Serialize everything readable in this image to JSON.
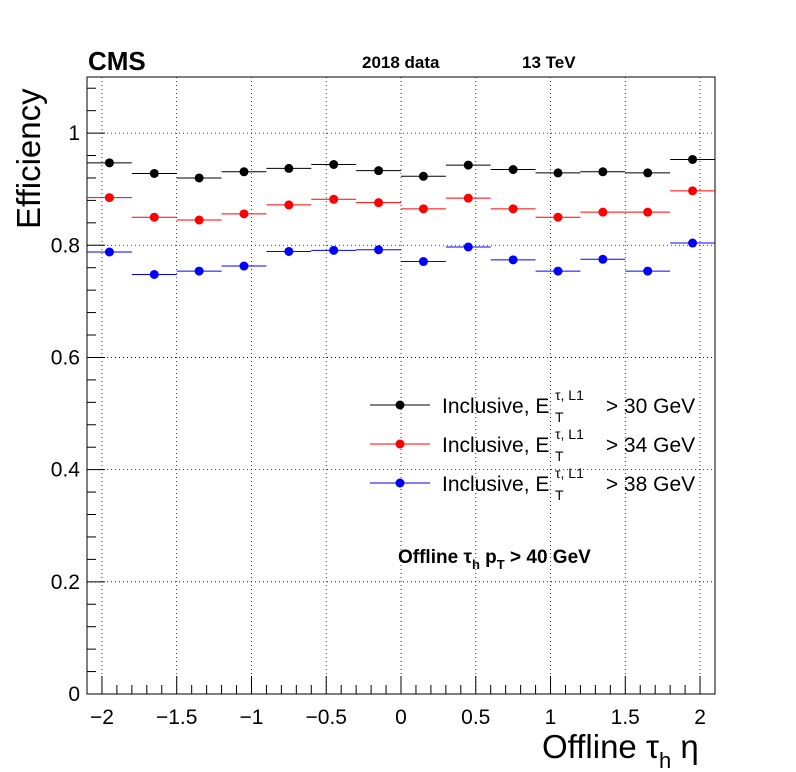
{
  "chart_data": {
    "type": "scatter",
    "experiment": "CMS",
    "dataset": "2018 data",
    "energy": "13 TeV",
    "ylabel": "Efficiency",
    "xlabel": {
      "prefix": "Offline ",
      "tau": "τ",
      "sub": "h",
      "eta": " η"
    },
    "xlim": [
      -2.1,
      2.1
    ],
    "ylim": [
      0,
      1.1
    ],
    "x_ticks": [
      -2,
      -1.5,
      -1,
      -0.5,
      0,
      0.5,
      1,
      1.5,
      2
    ],
    "x_tick_labels": [
      "−2",
      "−1.5",
      "−1",
      "−0.5",
      "0",
      "0.5",
      "1",
      "1.5",
      "2"
    ],
    "y_ticks": [
      0,
      0.2,
      0.4,
      0.6,
      0.8,
      1
    ],
    "y_tick_labels": [
      "0",
      "0.2",
      "0.4",
      "0.6",
      "0.8",
      "1"
    ],
    "grid": true,
    "legend_position": "right",
    "x": [
      -1.95,
      -1.65,
      -1.35,
      -1.05,
      -0.75,
      -0.45,
      -0.15,
      0.15,
      0.45,
      0.75,
      1.05,
      1.35,
      1.65,
      1.95
    ],
    "x_err": [
      0.15,
      0.15,
      0.15,
      0.15,
      0.15,
      0.15,
      0.15,
      0.15,
      0.15,
      0.15,
      0.15,
      0.15,
      0.15,
      0.15
    ],
    "series": [
      {
        "name": "Inclusive, E_T^{τ, L1} > 30 GeV",
        "legend": {
          "prefix": "Inclusive, E",
          "sup": "τ, L1",
          "sub": "T",
          "suffix": " > 30 GeV"
        },
        "color": "#000000",
        "values": [
          0.947,
          0.928,
          0.92,
          0.931,
          0.937,
          0.944,
          0.933,
          0.923,
          0.943,
          0.935,
          0.929,
          0.931,
          0.929,
          0.953
        ]
      },
      {
        "name": "Inclusive, E_T^{τ, L1} > 34 GeV",
        "legend": {
          "prefix": "Inclusive, E",
          "sup": "τ, L1",
          "sub": "T",
          "suffix": " > 34 GeV"
        },
        "color": "#ff0000",
        "values": [
          0.885,
          0.85,
          0.845,
          0.856,
          0.872,
          0.882,
          0.876,
          0.865,
          0.884,
          0.865,
          0.85,
          0.859,
          0.859,
          0.897
        ]
      },
      {
        "name": "Inclusive, E_T^{τ, L1} > 38 GeV",
        "legend": {
          "prefix": "Inclusive, E",
          "sup": "τ, L1",
          "sub": "T",
          "suffix": " > 38 GeV"
        },
        "color": "#0000ff",
        "values": [
          0.788,
          0.748,
          0.754,
          0.763,
          0.789,
          0.791,
          0.792,
          0.771,
          0.797,
          0.774,
          0.754,
          0.775,
          0.754,
          0.804
        ]
      }
    ],
    "annotation": {
      "prefix": "Offline ",
      "tau": "τ",
      "tau_sub": "h",
      "p": " p",
      "p_sub": "T",
      "suffix": " > 40 GeV"
    }
  }
}
